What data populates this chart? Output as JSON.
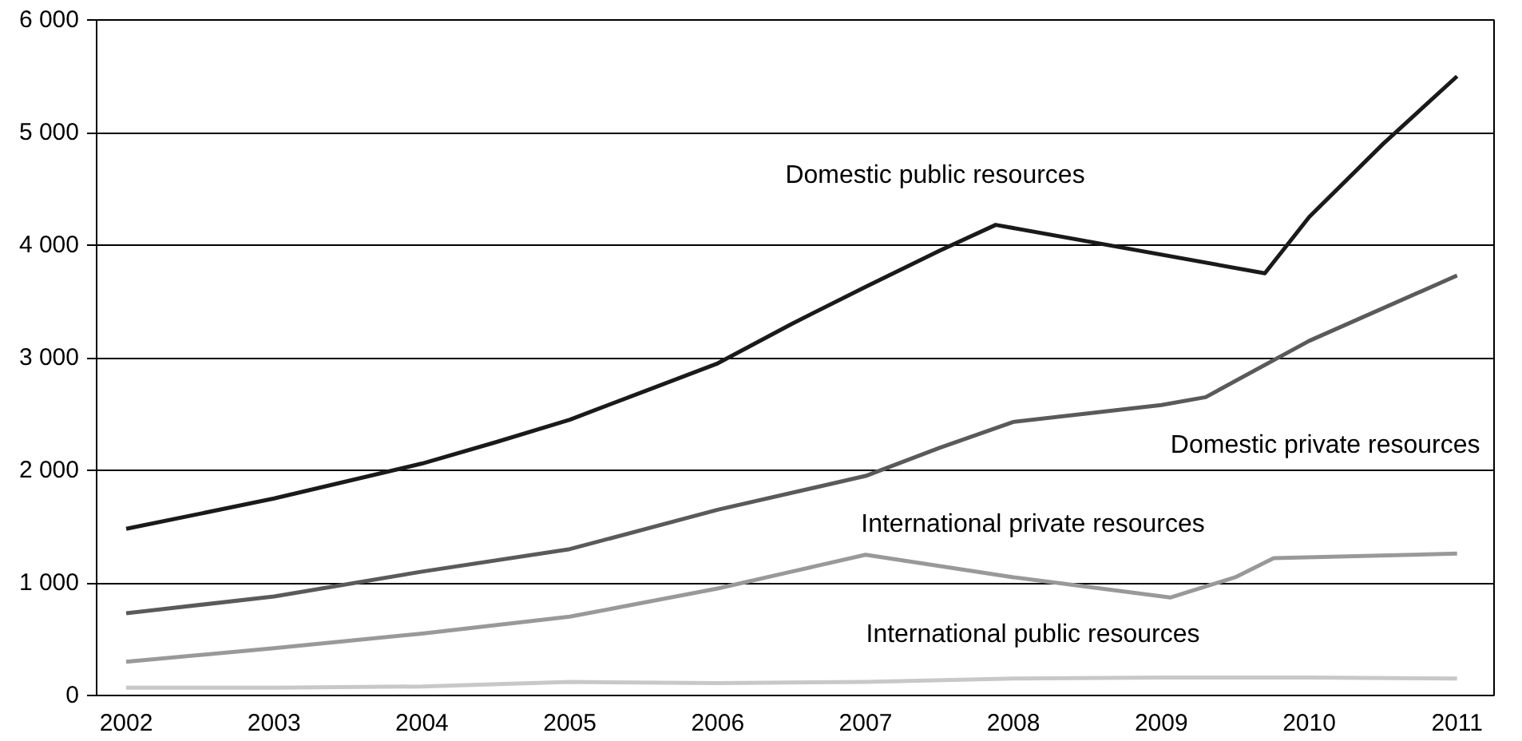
{
  "chart_data": {
    "type": "line",
    "xlim": [
      2001.8,
      2011.25
    ],
    "xticks": [
      2002,
      2003,
      2004,
      2005,
      2006,
      2007,
      2008,
      2009,
      2010,
      2011
    ],
    "ylim": [
      0,
      6000
    ],
    "yticks": [
      0,
      {
        "value": 1000,
        "label": "1 000"
      },
      {
        "value": 2000,
        "label": "2 000"
      },
      {
        "value": 3000,
        "label": "3 000"
      },
      {
        "value": 4000,
        "label": "4 000"
      },
      {
        "value": 5000,
        "label": "5 000"
      },
      {
        "value": 6000,
        "label": "6 000"
      }
    ],
    "grid": "y",
    "legend": false,
    "series": [
      {
        "name": "Domestic public resources",
        "color": "#1a1a1a",
        "x": [
          2002,
          2003,
          2004,
          2004.5,
          2005,
          2005.5,
          2006,
          2006.5,
          2007,
          2007.5,
          2007.88,
          2009.7,
          2010,
          2010.5,
          2011
        ],
        "values": [
          1480,
          1750,
          2060,
          2250,
          2450,
          2700,
          2950,
          3300,
          3630,
          3950,
          4180,
          3750,
          4250,
          4900,
          5500
        ]
      },
      {
        "name": "Domestic private resources",
        "color": "#5a5a5a",
        "x": [
          2002,
          2003,
          2004,
          2005,
          2006,
          2007,
          2007.5,
          2008,
          2009,
          2009.3,
          2010,
          2011
        ],
        "values": [
          730,
          880,
          1100,
          1300,
          1650,
          1950,
          2200,
          2430,
          2580,
          2650,
          3150,
          3730
        ]
      },
      {
        "name": "International private resources",
        "color": "#999999",
        "x": [
          2002,
          2003,
          2004,
          2005,
          2006,
          2006.5,
          2007,
          2008,
          2009.06,
          2009.5,
          2009.76,
          2011
        ],
        "values": [
          300,
          420,
          550,
          700,
          950,
          1100,
          1250,
          1050,
          870,
          1050,
          1220,
          1260
        ]
      },
      {
        "name": "International public resources",
        "color": "#c8c8c8",
        "x": [
          2002,
          2003,
          2004,
          2005,
          2006,
          2007,
          2008,
          2009,
          2010,
          2011
        ],
        "values": [
          70,
          70,
          80,
          120,
          110,
          120,
          150,
          160,
          160,
          150
        ]
      }
    ]
  }
}
